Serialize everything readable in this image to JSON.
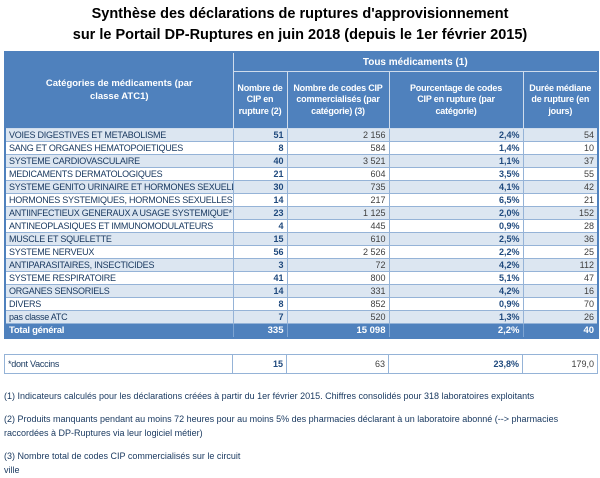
{
  "title": {
    "line1": "Synthèse des déclarations de ruptures d'approvisionnement",
    "line2": "sur le Portail DP-Ruptures en juin 2018 (depuis le 1er février 2015)"
  },
  "colors": {
    "header_blue": "#4f81bd",
    "row_shade_blue": "#dce6f1",
    "grid_blue": "#95b3d7",
    "bold_value_blue": "#1f497d",
    "text_navy": "#17375e"
  },
  "table": {
    "header": {
      "category_label": "Catégories de médicaments (par classe ATC1)",
      "group_label": "Tous médicaments (1)",
      "columns": [
        "Nombre de CIP en rupture (2)",
        "Nombre de codes CIP commercialisés (par catégorie) (3)",
        "Pourcentage de codes CIP en rupture (par catégorie)",
        "Durée médiane de rupture (en jours)"
      ]
    },
    "rows": [
      {
        "category": "VOIES DIGESTIVES ET METABOLISME",
        "cip_rupture": "51",
        "cip_commercialises": "2 156",
        "pourcentage": "2,4%",
        "duree_mediane": "54"
      },
      {
        "category": "SANG ET ORGANES HEMATOPOIETIQUES",
        "cip_rupture": "8",
        "cip_commercialises": "584",
        "pourcentage": "1,4%",
        "duree_mediane": "10"
      },
      {
        "category": "SYSTEME CARDIOVASCULAIRE",
        "cip_rupture": "40",
        "cip_commercialises": "3 521",
        "pourcentage": "1,1%",
        "duree_mediane": "37"
      },
      {
        "category": "MEDICAMENTS DERMATOLOGIQUES",
        "cip_rupture": "21",
        "cip_commercialises": "604",
        "pourcentage": "3,5%",
        "duree_mediane": "55"
      },
      {
        "category": "SYSTEME GENITO URINAIRE ET HORMONES SEXUELLES",
        "cip_rupture": "30",
        "cip_commercialises": "735",
        "pourcentage": "4,1%",
        "duree_mediane": "42"
      },
      {
        "category": "HORMONES SYSTEMIQUES, HORMONES SEXUELLES EXCLUES",
        "cip_rupture": "14",
        "cip_commercialises": "217",
        "pourcentage": "6,5%",
        "duree_mediane": "21"
      },
      {
        "category": "ANTIINFECTIEUX GENERAUX A USAGE SYSTEMIQUE*",
        "cip_rupture": "23",
        "cip_commercialises": "1 125",
        "pourcentage": "2,0%",
        "duree_mediane": "152"
      },
      {
        "category": "ANTINEOPLASIQUES ET IMMUNOMODULATEURS",
        "cip_rupture": "4",
        "cip_commercialises": "445",
        "pourcentage": "0,9%",
        "duree_mediane": "28"
      },
      {
        "category": "MUSCLE ET SQUELETTE",
        "cip_rupture": "15",
        "cip_commercialises": "610",
        "pourcentage": "2,5%",
        "duree_mediane": "36"
      },
      {
        "category": "SYSTEME NERVEUX",
        "cip_rupture": "56",
        "cip_commercialises": "2 526",
        "pourcentage": "2,2%",
        "duree_mediane": "25"
      },
      {
        "category": "ANTIPARASITAIRES, INSECTICIDES",
        "cip_rupture": "3",
        "cip_commercialises": "72",
        "pourcentage": "4,2%",
        "duree_mediane": "112"
      },
      {
        "category": "SYSTEME RESPIRATOIRE",
        "cip_rupture": "41",
        "cip_commercialises": "800",
        "pourcentage": "5,1%",
        "duree_mediane": "47"
      },
      {
        "category": "ORGANES SENSORIELS",
        "cip_rupture": "14",
        "cip_commercialises": "331",
        "pourcentage": "4,2%",
        "duree_mediane": "16"
      },
      {
        "category": "DIVERS",
        "cip_rupture": "8",
        "cip_commercialises": "852",
        "pourcentage": "0,9%",
        "duree_mediane": "70"
      },
      {
        "category": "pas classe ATC",
        "cip_rupture": "7",
        "cip_commercialises": "520",
        "pourcentage": "1,3%",
        "duree_mediane": "26"
      }
    ],
    "total": {
      "category": "Total général",
      "cip_rupture": "335",
      "cip_commercialises": "15 098",
      "pourcentage": "2,2%",
      "duree_mediane": "40"
    }
  },
  "vaccines": {
    "label": "*dont Vaccins",
    "cip_rupture": "15",
    "cip_commercialises": "63",
    "pourcentage": "23,8%",
    "duree_mediane": "179,0"
  },
  "footnotes": [
    "(1) Indicateurs calculés pour les déclarations créées à partir du 1er février 2015. Chiffres consolidés pour 318 laboratoires exploitants",
    "(2) Produits manquants pendant au moins 72 heures pour au moins 5% des pharmacies déclarant à un laboratoire abonné (--> pharmacies raccordées à DP-Ruptures via leur logiciel métier)",
    "(3) Nombre total de codes CIP commercialisés sur le circuit\nville"
  ]
}
